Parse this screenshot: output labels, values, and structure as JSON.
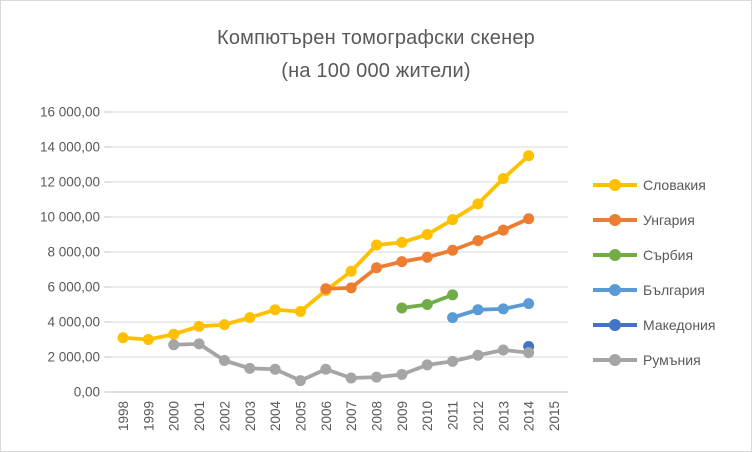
{
  "window": {
    "background": "#FFFFFF",
    "border_color": "#D9D9D9"
  },
  "chart_data": {
    "type": "line",
    "title": "Компютърен томографски скенер",
    "subtitle": "(на 100 000 жители)",
    "x_categories": [
      "1998",
      "1999",
      "2000",
      "2001",
      "2002",
      "2003",
      "2004",
      "2005",
      "2006",
      "2007",
      "2008",
      "2009",
      "2010",
      "2011",
      "2012",
      "2013",
      "2014",
      "2015"
    ],
    "ylim": [
      0,
      16000
    ],
    "y_ticks": [
      0,
      2000,
      4000,
      6000,
      8000,
      10000,
      12000,
      14000,
      16000
    ],
    "y_tick_labels": [
      "0,00",
      "2 000,00",
      "4 000,00",
      "6 000,00",
      "8 000,00",
      "10 000,00",
      "12 000,00",
      "14 000,00",
      "16 000,00"
    ],
    "grid": true,
    "legend_position": "right",
    "series": [
      {
        "id": "slovakia",
        "name": "Словакия",
        "color": "#FFC000",
        "start_year": "1998",
        "values": [
          3100,
          3000,
          3300,
          3750,
          3850,
          4250,
          4700,
          4600,
          5800,
          6900,
          8400,
          8550,
          9000,
          9850,
          10750,
          12200,
          13500
        ]
      },
      {
        "id": "hungary",
        "name": "Унгария",
        "color": "#ED7D31",
        "start_year": "2006",
        "values": [
          5900,
          5950,
          7100,
          7450,
          7700,
          8100,
          8650,
          9250,
          9900
        ]
      },
      {
        "id": "serbia",
        "name": "Сърбия",
        "color": "#70AD47",
        "start_year": "2009",
        "values": [
          4800,
          5000,
          5550
        ]
      },
      {
        "id": "bulgaria",
        "name": "България",
        "color": "#5B9BD5",
        "start_year": "2011",
        "values": [
          4250,
          4700,
          4750,
          5050
        ]
      },
      {
        "id": "macedonia",
        "name": "Македония",
        "color": "#4472C4",
        "start_year": "2014",
        "values": [
          2600
        ]
      },
      {
        "id": "romania",
        "name": "Румъния",
        "color": "#A5A5A5",
        "start_year": "2000",
        "values": [
          2700,
          2750,
          1800,
          1350,
          1300,
          650,
          1300,
          800,
          850,
          1000,
          1550,
          1750,
          2100,
          2400,
          2250
        ]
      }
    ]
  }
}
